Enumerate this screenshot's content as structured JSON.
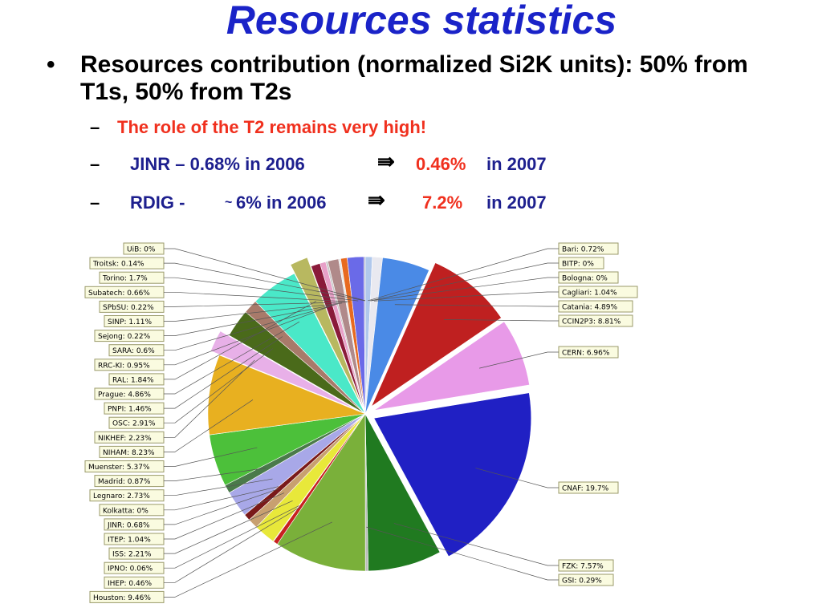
{
  "slide": {
    "title": "Resources statistics",
    "bullet": "Resources contribution (normalized Si2K units): 50% from T1s, 50% from T2s",
    "bullet_marker": "•",
    "dash": "–",
    "line1": "The role of the T2 remains very high!",
    "line2_prefix": "JINR – 0.68% in 2006",
    "line2_arrow": "⇛",
    "line2_value": "0.46%",
    "line2_suffix": "in 2007",
    "line3_prefix": "RDIG -",
    "line3_tilde": "~",
    "line3_mid": "6% in 2006",
    "line3_arrow": "⇛",
    "line3_value": "7.2%",
    "line3_suffix": "in 2007"
  },
  "colors": {
    "title": "#1a23c8",
    "highlight": "#f0301e",
    "subtext": "#1d1f8e"
  },
  "chart_data": {
    "type": "pie",
    "start": "top, clockwise",
    "slices": [
      {
        "label": "Bari: 0.72%",
        "value": 0.72,
        "color": "#b0c8ec"
      },
      {
        "label": "BITP: 0%",
        "value": 0,
        "color": "#ffffff"
      },
      {
        "label": "Bologna: 0%",
        "value": 0,
        "color": "#ffffff"
      },
      {
        "label": "Cagliari: 1.04%",
        "value": 1.04,
        "color": "#e9e9f0"
      },
      {
        "label": "Catania: 4.89%",
        "value": 4.89,
        "color": "#4a8ae6"
      },
      {
        "label": "CCIN2P3: 8.81%",
        "value": 8.81,
        "color": "#bf2020"
      },
      {
        "label": "CERN: 6.96%",
        "value": 6.96,
        "color": "#e89ae8"
      },
      {
        "label": "CNAF: 19.7%",
        "value": 19.7,
        "color": "#2020c4"
      },
      {
        "label": "FZK: 7.57%",
        "value": 7.57,
        "color": "#207a20"
      },
      {
        "label": "GSI: 0.29%",
        "value": 0.29,
        "color": "#bdbdbd"
      },
      {
        "label": "Houston: 9.46%",
        "value": 9.46,
        "color": "#7ab03a"
      },
      {
        "label": "IHEP: 0.46%",
        "value": 0.46,
        "color": "#c82020"
      },
      {
        "label": "IPNO: 0.06%",
        "value": 0.06,
        "color": "#8a5a2a"
      },
      {
        "label": "ISS: 2.21%",
        "value": 2.21,
        "color": "#e8e83a"
      },
      {
        "label": "ITEP: 1.04%",
        "value": 1.04,
        "color": "#c8a070"
      },
      {
        "label": "JINR: 0.68%",
        "value": 0.68,
        "color": "#7a1a1a"
      },
      {
        "label": "Kolkatta: 0%",
        "value": 0,
        "color": "#ffffff"
      },
      {
        "label": "Legnaro: 2.73%",
        "value": 2.73,
        "color": "#a8a8e8"
      },
      {
        "label": "Madrid: 0.87%",
        "value": 0.87,
        "color": "#4a7a4a"
      },
      {
        "label": "Muenster: 5.37%",
        "value": 5.37,
        "color": "#4cc03a"
      },
      {
        "label": "NIHAM: 8.23%",
        "value": 8.23,
        "color": "#e8b020"
      },
      {
        "label": "NIKHEF: 2.23%",
        "value": 2.23,
        "color": "#e8b0e8"
      },
      {
        "label": "OSC: 2.91%",
        "value": 2.91,
        "color": "#4a6a1a"
      },
      {
        "label": "PNPI: 1.46%",
        "value": 1.46,
        "color": "#a87a6a"
      },
      {
        "label": "Prague: 4.86%",
        "value": 4.86,
        "color": "#4ae8c8"
      },
      {
        "label": "RAL: 1.84%",
        "value": 1.84,
        "color": "#b8b860"
      },
      {
        "label": "RRC-KI: 0.95%",
        "value": 0.95,
        "color": "#8a1a3a"
      },
      {
        "label": "SARA: 0.6%",
        "value": 0.6,
        "color": "#e8a0c8"
      },
      {
        "label": "Sejong: 0.22%",
        "value": 0.22,
        "color": "#c8c8c8"
      },
      {
        "label": "SINP: 1.11%",
        "value": 1.11,
        "color": "#b08a8a"
      },
      {
        "label": "SPbSU: 0.22%",
        "value": 0.22,
        "color": "#e8e8e8"
      },
      {
        "label": "Subatech: 0.66%",
        "value": 0.66,
        "color": "#e86a20"
      },
      {
        "label": "Torino: 1.7%",
        "value": 1.7,
        "color": "#6a6ae8"
      },
      {
        "label": "Troitsk: 0.14%",
        "value": 0.14,
        "color": "#a0a0c0"
      },
      {
        "label": "UiB: 0%",
        "value": 0,
        "color": "#ffffff"
      }
    ],
    "exploded": [
      "CCIN2P3: 8.81%",
      "CERN: 6.96%",
      "CNAF: 19.7%",
      "NIKHEF: 2.23%",
      "RAL: 1.84%"
    ],
    "right_labels": [
      "Bari: 0.72%",
      "BITP: 0%",
      "Bologna: 0%",
      "Cagliari: 1.04%",
      "Catania: 4.89%",
      "CCIN2P3: 8.81%",
      "CERN: 6.96%",
      "CNAF: 19.7%",
      "FZK: 7.57%",
      "GSI: 0.29%"
    ],
    "left_labels": [
      "UiB: 0%",
      "Troitsk: 0.14%",
      "Torino: 1.7%",
      "Subatech: 0.66%",
      "SPbSU: 0.22%",
      "SINP: 1.11%",
      "Sejong: 0.22%",
      "SARA: 0.6%",
      "RRC-KI: 0.95%",
      "RAL: 1.84%",
      "Prague: 4.86%",
      "PNPI: 1.46%",
      "OSC: 2.91%",
      "NIKHEF: 2.23%",
      "NIHAM: 8.23%",
      "Muenster: 5.37%",
      "Madrid: 0.87%",
      "Legnaro: 2.73%",
      "Kolkatta: 0%",
      "JINR: 0.68%",
      "ITEP: 1.04%",
      "ISS: 2.21%",
      "IPNO: 0.06%",
      "IHEP: 0.46%",
      "Houston: 9.46%"
    ]
  }
}
